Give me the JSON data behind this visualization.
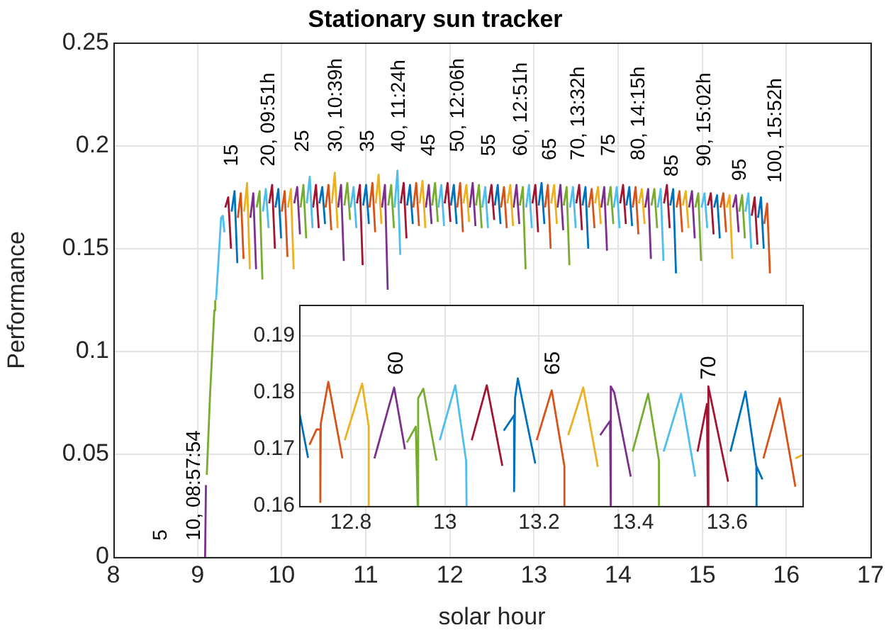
{
  "chart_data": [
    {
      "type": "line",
      "title": "Stationary sun tracker",
      "xlabel": "solar hour",
      "ylabel": "Performance",
      "xlim": [
        8,
        17
      ],
      "ylim": [
        0,
        0.25
      ],
      "xticks": [
        8,
        9,
        10,
        11,
        12,
        13,
        14,
        15,
        16,
        17
      ],
      "yticks": [
        0,
        0.05,
        0.1,
        0.15,
        0.2,
        0.25
      ],
      "grid": true,
      "series": [
        {
          "color": "#7e2f8e",
          "x": [
            9.09,
            9.1
          ],
          "values": [
            0,
            0.035
          ]
        },
        {
          "color": "#77ac30",
          "x": [
            9.11,
            9.15,
            9.2,
            9.21
          ],
          "values": [
            0.04,
            0.08,
            0.12,
            0.125
          ]
        },
        {
          "color": "#4dbeee",
          "x": [
            9.22,
            9.28,
            9.3,
            9.32
          ],
          "values": [
            0.125,
            0.165,
            0.166,
            0.158
          ]
        },
        {
          "color": "#a2142f",
          "x": [
            9.33,
            9.365,
            9.398
          ],
          "values": [
            0.17,
            0.175,
            0.15
          ]
        },
        {
          "color": "#0072bd",
          "x": [
            9.405,
            9.44,
            9.473
          ],
          "values": [
            0.168,
            0.178,
            0.143
          ]
        },
        {
          "color": "#d95319",
          "x": [
            9.479,
            9.514,
            9.547
          ],
          "values": [
            0.165,
            0.177,
            0.145
          ]
        },
        {
          "color": "#edb120",
          "x": [
            9.554,
            9.589,
            9.622
          ],
          "values": [
            0.168,
            0.182,
            0.14
          ]
        },
        {
          "color": "#7e2f8e",
          "x": [
            9.628,
            9.663,
            9.696
          ],
          "values": [
            0.165,
            0.177,
            0.14
          ]
        },
        {
          "color": "#77ac30",
          "x": [
            9.703,
            9.738,
            9.771
          ],
          "values": [
            0.17,
            0.178,
            0.135
          ]
        },
        {
          "color": "#4dbeee",
          "x": [
            9.777,
            9.812,
            9.845
          ],
          "values": [
            0.168,
            0.179,
            0.16
          ]
        },
        {
          "color": "#a2142f",
          "x": [
            9.852,
            9.887,
            9.92
          ],
          "values": [
            0.172,
            0.181,
            0.15
          ]
        },
        {
          "color": "#0072bd",
          "x": [
            9.926,
            9.961,
            9.994
          ],
          "values": [
            0.17,
            0.179,
            0.155
          ]
        },
        {
          "color": "#d95319",
          "x": [
            10.001,
            10.036,
            10.069
          ],
          "values": [
            0.168,
            0.178,
            0.146
          ]
        },
        {
          "color": "#edb120",
          "x": [
            10.075,
            10.11,
            10.143
          ],
          "values": [
            0.17,
            0.179,
            0.14
          ]
        },
        {
          "color": "#7e2f8e",
          "x": [
            10.15,
            10.185,
            10.218
          ],
          "values": [
            0.172,
            0.18,
            0.157
          ]
        },
        {
          "color": "#77ac30",
          "x": [
            10.224,
            10.259,
            10.292
          ],
          "values": [
            0.17,
            0.181,
            0.155
          ]
        },
        {
          "color": "#4dbeee",
          "x": [
            10.299,
            10.334,
            10.367
          ],
          "values": [
            0.172,
            0.185,
            0.16
          ]
        },
        {
          "color": "#a2142f",
          "x": [
            10.373,
            10.408,
            10.441
          ],
          "values": [
            0.17,
            0.181,
            0.16
          ]
        },
        {
          "color": "#0072bd",
          "x": [
            10.448,
            10.483,
            10.516
          ],
          "values": [
            0.172,
            0.18,
            0.162
          ]
        },
        {
          "color": "#d95319",
          "x": [
            10.522,
            10.557,
            10.59
          ],
          "values": [
            0.17,
            0.181,
            0.159
          ]
        },
        {
          "color": "#edb120",
          "x": [
            10.597,
            10.632,
            10.665
          ],
          "values": [
            0.172,
            0.187,
            0.16
          ]
        },
        {
          "color": "#7e2f8e",
          "x": [
            10.671,
            10.706,
            10.739
          ],
          "values": [
            0.17,
            0.181,
            0.144
          ]
        },
        {
          "color": "#77ac30",
          "x": [
            10.746,
            10.781,
            10.814
          ],
          "values": [
            0.171,
            0.182,
            0.164
          ]
        },
        {
          "color": "#4dbeee",
          "x": [
            10.82,
            10.855,
            10.888
          ],
          "values": [
            0.17,
            0.18,
            0.16
          ]
        },
        {
          "color": "#a2142f",
          "x": [
            10.895,
            10.93,
            10.963
          ],
          "values": [
            0.172,
            0.181,
            0.142
          ]
        },
        {
          "color": "#0072bd",
          "x": [
            10.969,
            11.004,
            11.037
          ],
          "values": [
            0.171,
            0.181,
            0.162
          ]
        },
        {
          "color": "#d95319",
          "x": [
            11.044,
            11.079,
            11.112
          ],
          "values": [
            0.17,
            0.182,
            0.158
          ]
        },
        {
          "color": "#edb120",
          "x": [
            11.118,
            11.153,
            11.186
          ],
          "values": [
            0.172,
            0.186,
            0.162
          ]
        },
        {
          "color": "#7e2f8e",
          "x": [
            11.193,
            11.228,
            11.261
          ],
          "values": [
            0.17,
            0.181,
            0.13
          ]
        },
        {
          "color": "#77ac30",
          "x": [
            11.267,
            11.302,
            11.335
          ],
          "values": [
            0.171,
            0.181,
            0.16
          ]
        },
        {
          "color": "#4dbeee",
          "x": [
            11.342,
            11.377,
            11.41
          ],
          "values": [
            0.17,
            0.188,
            0.147
          ]
        },
        {
          "color": "#a2142f",
          "x": [
            11.416,
            11.451,
            11.484
          ],
          "values": [
            0.172,
            0.182,
            0.155
          ]
        },
        {
          "color": "#0072bd",
          "x": [
            11.491,
            11.526,
            11.559
          ],
          "values": [
            0.171,
            0.181,
            0.162
          ]
        },
        {
          "color": "#d95319",
          "x": [
            11.565,
            11.6,
            11.633
          ],
          "values": [
            0.17,
            0.182,
            0.161
          ]
        },
        {
          "color": "#edb120",
          "x": [
            11.64,
            11.675,
            11.708
          ],
          "values": [
            0.172,
            0.183,
            0.16
          ]
        },
        {
          "color": "#7e2f8e",
          "x": [
            11.714,
            11.749,
            11.782
          ],
          "values": [
            0.17,
            0.181,
            0.162
          ]
        },
        {
          "color": "#77ac30",
          "x": [
            11.789,
            11.824,
            11.857
          ],
          "values": [
            0.171,
            0.182,
            0.163
          ]
        },
        {
          "color": "#4dbeee",
          "x": [
            11.863,
            11.898,
            11.931
          ],
          "values": [
            0.17,
            0.181,
            0.161
          ]
        },
        {
          "color": "#a2142f",
          "x": [
            11.938,
            11.973,
            12.006
          ],
          "values": [
            0.172,
            0.182,
            0.163
          ]
        },
        {
          "color": "#0072bd",
          "x": [
            12.012,
            12.047,
            12.08
          ],
          "values": [
            0.171,
            0.181,
            0.162
          ]
        },
        {
          "color": "#d95319",
          "x": [
            12.087,
            12.122,
            12.155
          ],
          "values": [
            0.17,
            0.182,
            0.158
          ]
        },
        {
          "color": "#edb120",
          "x": [
            12.161,
            12.196,
            12.229
          ],
          "values": [
            0.172,
            0.181,
            0.163
          ]
        },
        {
          "color": "#7e2f8e",
          "x": [
            12.236,
            12.271,
            12.304
          ],
          "values": [
            0.17,
            0.182,
            0.161
          ]
        },
        {
          "color": "#77ac30",
          "x": [
            12.31,
            12.345,
            12.378
          ],
          "values": [
            0.171,
            0.181,
            0.16
          ]
        },
        {
          "color": "#4dbeee",
          "x": [
            12.385,
            12.42,
            12.453
          ],
          "values": [
            0.17,
            0.18,
            0.16
          ]
        },
        {
          "color": "#a2142f",
          "x": [
            12.459,
            12.494,
            12.527
          ],
          "values": [
            0.172,
            0.181,
            0.164
          ]
        },
        {
          "color": "#0072bd",
          "x": [
            12.534,
            12.569,
            12.602
          ],
          "values": [
            0.171,
            0.181,
            0.162
          ]
        },
        {
          "color": "#d95319",
          "x": [
            12.608,
            12.643,
            12.676
          ],
          "values": [
            0.17,
            0.18,
            0.16
          ]
        },
        {
          "color": "#edb120",
          "x": [
            12.683,
            12.718,
            12.751
          ],
          "values": [
            0.172,
            0.181,
            0.161
          ]
        },
        {
          "color": "#7e2f8e",
          "x": [
            12.757,
            12.792,
            12.825
          ],
          "values": [
            0.17,
            0.181,
            0.162
          ]
        },
        {
          "color": "#77ac30",
          "x": [
            12.832,
            12.867,
            12.9
          ],
          "values": [
            0.171,
            0.18,
            0.14
          ]
        },
        {
          "color": "#4dbeee",
          "x": [
            12.906,
            12.941,
            12.974
          ],
          "values": [
            0.17,
            0.181,
            0.16
          ]
        },
        {
          "color": "#a2142f",
          "x": [
            12.981,
            13.016,
            13.049
          ],
          "values": [
            0.172,
            0.181,
            0.158
          ]
        },
        {
          "color": "#0072bd",
          "x": [
            13.055,
            13.09,
            13.123
          ],
          "values": [
            0.171,
            0.182,
            0.162
          ]
        },
        {
          "color": "#d95319",
          "x": [
            13.13,
            13.165,
            13.198
          ],
          "values": [
            0.17,
            0.181,
            0.15
          ]
        },
        {
          "color": "#edb120",
          "x": [
            13.204,
            13.239,
            13.272
          ],
          "values": [
            0.172,
            0.181,
            0.162
          ]
        },
        {
          "color": "#7e2f8e",
          "x": [
            13.279,
            13.314,
            13.347
          ],
          "values": [
            0.17,
            0.181,
            0.159
          ]
        },
        {
          "color": "#77ac30",
          "x": [
            13.353,
            13.388,
            13.421
          ],
          "values": [
            0.171,
            0.18,
            0.142
          ]
        },
        {
          "color": "#4dbeee",
          "x": [
            13.428,
            13.463,
            13.496
          ],
          "values": [
            0.17,
            0.18,
            0.16
          ]
        },
        {
          "color": "#a2142f",
          "x": [
            13.502,
            13.537,
            13.57
          ],
          "values": [
            0.172,
            0.181,
            0.159
          ]
        },
        {
          "color": "#0072bd",
          "x": [
            13.577,
            13.612,
            13.645
          ],
          "values": [
            0.171,
            0.18,
            0.15
          ]
        },
        {
          "color": "#d95319",
          "x": [
            13.651,
            13.686,
            13.719
          ],
          "values": [
            0.17,
            0.179,
            0.16
          ]
        },
        {
          "color": "#edb120",
          "x": [
            13.726,
            13.761,
            13.794
          ],
          "values": [
            0.172,
            0.18,
            0.162
          ]
        },
        {
          "color": "#7e2f8e",
          "x": [
            13.8,
            13.835,
            13.868
          ],
          "values": [
            0.17,
            0.18,
            0.149
          ]
        },
        {
          "color": "#77ac30",
          "x": [
            13.875,
            13.91,
            13.943
          ],
          "values": [
            0.171,
            0.18,
            0.162
          ]
        },
        {
          "color": "#4dbeee",
          "x": [
            13.949,
            13.984,
            14.017
          ],
          "values": [
            0.17,
            0.18,
            0.16
          ]
        },
        {
          "color": "#a2142f",
          "x": [
            14.024,
            14.059,
            14.092
          ],
          "values": [
            0.172,
            0.181,
            0.162
          ]
        },
        {
          "color": "#0072bd",
          "x": [
            14.098,
            14.133,
            14.166
          ],
          "values": [
            0.171,
            0.18,
            0.161
          ]
        },
        {
          "color": "#d95319",
          "x": [
            14.173,
            14.208,
            14.241
          ],
          "values": [
            0.17,
            0.18,
            0.157
          ]
        },
        {
          "color": "#edb120",
          "x": [
            14.247,
            14.282,
            14.315
          ],
          "values": [
            0.172,
            0.179,
            0.162
          ]
        },
        {
          "color": "#7e2f8e",
          "x": [
            14.322,
            14.357,
            14.39
          ],
          "values": [
            0.17,
            0.179,
            0.145
          ]
        },
        {
          "color": "#77ac30",
          "x": [
            14.396,
            14.431,
            14.464
          ],
          "values": [
            0.171,
            0.179,
            0.16
          ]
        },
        {
          "color": "#4dbeee",
          "x": [
            14.471,
            14.506,
            14.539
          ],
          "values": [
            0.17,
            0.179,
            0.144
          ]
        },
        {
          "color": "#a2142f",
          "x": [
            14.545,
            14.58,
            14.613
          ],
          "values": [
            0.172,
            0.181,
            0.16
          ]
        },
        {
          "color": "#0072bd",
          "x": [
            14.62,
            14.655,
            14.688
          ],
          "values": [
            0.171,
            0.179,
            0.138
          ]
        },
        {
          "color": "#d95319",
          "x": [
            14.694,
            14.729,
            14.762
          ],
          "values": [
            0.17,
            0.178,
            0.158
          ]
        },
        {
          "color": "#edb120",
          "x": [
            14.769,
            14.804,
            14.837
          ],
          "values": [
            0.171,
            0.178,
            0.16
          ]
        },
        {
          "color": "#7e2f8e",
          "x": [
            14.843,
            14.878,
            14.911
          ],
          "values": [
            0.17,
            0.178,
            0.155
          ]
        },
        {
          "color": "#77ac30",
          "x": [
            14.918,
            14.953,
            14.986
          ],
          "values": [
            0.17,
            0.177,
            0.144
          ]
        },
        {
          "color": "#4dbeee",
          "x": [
            14.992,
            15.027,
            15.06
          ],
          "values": [
            0.17,
            0.177,
            0.16
          ]
        },
        {
          "color": "#a2142f",
          "x": [
            15.067,
            15.102,
            15.135
          ],
          "values": [
            0.171,
            0.177,
            0.157
          ]
        },
        {
          "color": "#0072bd",
          "x": [
            15.141,
            15.176,
            15.209
          ],
          "values": [
            0.17,
            0.176,
            0.155
          ]
        },
        {
          "color": "#d95319",
          "x": [
            15.216,
            15.251,
            15.284
          ],
          "values": [
            0.17,
            0.177,
            0.158
          ]
        },
        {
          "color": "#edb120",
          "x": [
            15.29,
            15.325,
            15.358
          ],
          "values": [
            0.17,
            0.176,
            0.145
          ]
        },
        {
          "color": "#7e2f8e",
          "x": [
            15.365,
            15.4,
            15.433
          ],
          "values": [
            0.17,
            0.176,
            0.158
          ]
        },
        {
          "color": "#77ac30",
          "x": [
            15.439,
            15.474,
            15.507
          ],
          "values": [
            0.168,
            0.176,
            0.155
          ]
        },
        {
          "color": "#4dbeee",
          "x": [
            15.514,
            15.549,
            15.582
          ],
          "values": [
            0.168,
            0.177,
            0.15
          ]
        },
        {
          "color": "#a2142f",
          "x": [
            15.588,
            15.623,
            15.656
          ],
          "values": [
            0.166,
            0.175,
            0.152
          ]
        },
        {
          "color": "#0072bd",
          "x": [
            15.663,
            15.698,
            15.731
          ],
          "values": [
            0.165,
            0.175,
            0.15
          ]
        },
        {
          "color": "#d95319",
          "x": [
            15.737,
            15.772,
            15.805
          ],
          "values": [
            0.162,
            0.172,
            0.138
          ]
        }
      ],
      "annotations": [
        "5",
        "10, 08:57:54",
        "15",
        "20, 09:51h",
        "25",
        "30, 10:39h",
        "35",
        "40, 11:24h",
        "45",
        "50, 12:06h",
        "55",
        "60, 12:51h",
        "65",
        "70, 13:32h",
        "75",
        "80, 14:15h",
        "85",
        "90, 15:02h",
        "95",
        "100, 15:52h"
      ]
    },
    {
      "type": "line",
      "xlim": [
        12.69,
        13.76
      ],
      "ylim": [
        0.16,
        0.1955
      ],
      "xticks": [
        12.8,
        13,
        13.2,
        13.4,
        13.6
      ],
      "yticks": [
        0.16,
        0.17,
        0.18,
        0.19
      ],
      "grid": true,
      "series": [
        {
          "color": "#0072bd",
          "x": [
            12.69,
            12.709
          ],
          "values": [
            0.1767,
            0.1685
          ]
        },
        {
          "color": "#d95319",
          "x": [
            12.712,
            12.727,
            12.735,
            12.735,
            12.736,
            12.752,
            12.782
          ],
          "values": [
            0.1708,
            0.1735,
            0.1735,
            0.1607,
            0.1745,
            0.1819,
            0.1684
          ]
        },
        {
          "color": "#edb120",
          "x": [
            12.787,
            12.824,
            12.838,
            12.838
          ],
          "values": [
            0.1716,
            0.1816,
            0.174,
            0.16
          ]
        },
        {
          "color": "#7e2f8e",
          "x": [
            12.85,
            12.892,
            12.915
          ],
          "values": [
            0.1684,
            0.1809,
            0.17
          ]
        },
        {
          "color": "#77ac30",
          "x": [
            12.919,
            12.938,
            12.942,
            12.943,
            12.954,
            12.982
          ],
          "values": [
            0.1712,
            0.174,
            0.16,
            0.179,
            0.1807,
            0.168
          ]
        },
        {
          "color": "#4dbeee",
          "x": [
            12.989,
            13.022,
            13.045,
            13.046
          ],
          "values": [
            0.1716,
            0.1813,
            0.168,
            0.16
          ]
        },
        {
          "color": "#a2142f",
          "x": [
            13.057,
            13.089,
            13.122
          ],
          "values": [
            0.1716,
            0.1813,
            0.1671
          ]
        },
        {
          "color": "#0072bd",
          "x": [
            13.125,
            13.147,
            13.147,
            13.149,
            13.155,
            13.192
          ],
          "values": [
            0.1733,
            0.176,
            0.1626,
            0.179,
            0.1825,
            0.1675
          ]
        },
        {
          "color": "#d95319",
          "x": [
            13.195,
            13.227,
            13.254,
            13.254
          ],
          "values": [
            0.1716,
            0.1804,
            0.167,
            0.16
          ]
        },
        {
          "color": "#edb120",
          "x": [
            13.262,
            13.294,
            13.325
          ],
          "values": [
            0.1725,
            0.1809,
            0.1669
          ]
        },
        {
          "color": "#7e2f8e",
          "x": [
            13.33,
            13.351,
            13.352,
            13.353,
            13.36,
            13.395
          ],
          "values": [
            0.1725,
            0.175,
            0.16,
            0.1811,
            0.18,
            0.1652
          ]
        },
        {
          "color": "#77ac30",
          "x": [
            13.399,
            13.432,
            13.455,
            13.455
          ],
          "values": [
            0.1696,
            0.1798,
            0.168,
            0.16
          ]
        },
        {
          "color": "#4dbeee",
          "x": [
            13.465,
            13.502,
            13.532
          ],
          "values": [
            0.1696,
            0.1798,
            0.1652
          ]
        },
        {
          "color": "#a2142f",
          "x": [
            13.537,
            13.557,
            13.559,
            13.56,
            13.602
          ],
          "values": [
            0.1696,
            0.178,
            0.16,
            0.1811,
            0.1643
          ]
        },
        {
          "color": "#0072bd",
          "x": [
            13.607,
            13.639,
            13.662,
            13.662,
            13.663,
            13.675
          ],
          "values": [
            0.1696,
            0.1802,
            0.167,
            0.16,
            0.167,
            0.1647
          ]
        },
        {
          "color": "#d95319",
          "x": [
            13.677,
            13.712,
            13.745
          ],
          "values": [
            0.1684,
            0.179,
            0.1634
          ]
        },
        {
          "color": "#edb120",
          "x": [
            13.745,
            13.76
          ],
          "values": [
            0.1684,
            0.169
          ]
        }
      ],
      "annotations": [
        "60",
        "65",
        "70"
      ]
    }
  ]
}
